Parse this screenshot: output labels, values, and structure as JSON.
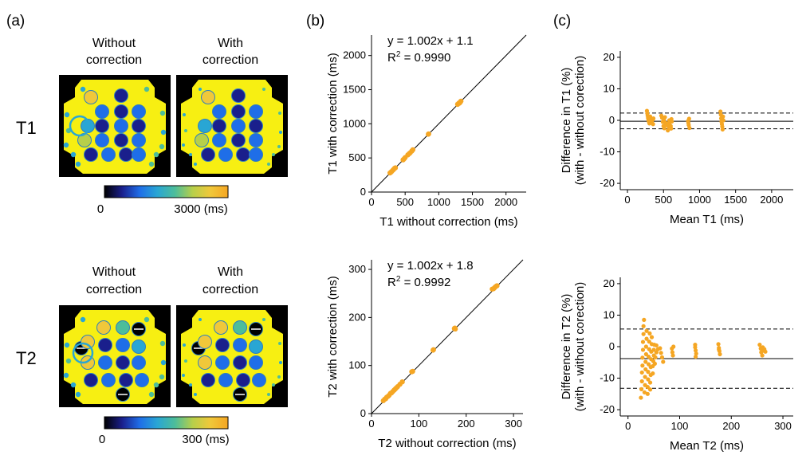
{
  "panel_labels": {
    "a": "(a)",
    "b": "(b)",
    "c": "(c)"
  },
  "panel_a": {
    "header_without": [
      "Without",
      "correction"
    ],
    "header_with": [
      "With",
      "correction"
    ],
    "row_labels": {
      "t1": "T1",
      "t2": "T2"
    },
    "colorbar_t1": {
      "min_label": "0",
      "max_label": "3000 (ms)"
    },
    "colorbar_t2": {
      "min_label": "0",
      "max_label": "300 (ms)"
    },
    "colormap": [
      "#000000",
      "#1a1f8c",
      "#1f6ee8",
      "#29a6d4",
      "#4dbd9a",
      "#b7cf4a",
      "#f0c83a",
      "#f5a623"
    ],
    "phantom_fill": "#f7ef12"
  },
  "chart_data": [
    {
      "id": "b_top",
      "type": "scatter",
      "xlabel": "T1 without correction (ms)",
      "ylabel": "T1 with correction (ms)",
      "xlim": [
        0,
        2300
      ],
      "ylim": [
        0,
        2300
      ],
      "xticks": [
        0,
        500,
        1000,
        1500,
        2000
      ],
      "yticks": [
        0,
        500,
        1000,
        1500,
        2000
      ],
      "tick_labels": [
        "0",
        "500",
        "1000",
        "1500",
        "2000"
      ],
      "equation": "y = 1.002x + 1.1",
      "r2_prefix": "R",
      "r2_value": " = 0.9990",
      "identity_line": true,
      "color": "#f5a623",
      "points": [
        [
          275,
          280
        ],
        [
          290,
          292
        ],
        [
          300,
          302
        ],
        [
          320,
          322
        ],
        [
          330,
          333
        ],
        [
          345,
          350
        ],
        [
          355,
          355
        ],
        [
          470,
          472
        ],
        [
          485,
          488
        ],
        [
          500,
          505
        ],
        [
          540,
          545
        ],
        [
          560,
          562
        ],
        [
          575,
          575
        ],
        [
          600,
          602
        ],
        [
          615,
          620
        ],
        [
          845,
          848
        ],
        [
          850,
          852
        ],
        [
          1280,
          1285
        ],
        [
          1295,
          1298
        ],
        [
          1305,
          1308
        ],
        [
          1310,
          1305
        ],
        [
          1320,
          1318
        ],
        [
          1330,
          1332
        ]
      ]
    },
    {
      "id": "b_bottom",
      "type": "scatter",
      "xlabel": "T2 without correction (ms)",
      "ylabel": "T2 with correction (ms)",
      "xlim": [
        0,
        320
      ],
      "ylim": [
        0,
        320
      ],
      "xticks": [
        0,
        100,
        200,
        300
      ],
      "yticks": [
        0,
        100,
        200,
        300
      ],
      "tick_labels": [
        "0",
        "100",
        "200",
        "300"
      ],
      "equation": "y = 1.002x + 1.8",
      "r2_prefix": "R",
      "r2_value": " = 0.9992",
      "identity_line": true,
      "color": "#f5a623",
      "points": [
        [
          25,
          27
        ],
        [
          28,
          30
        ],
        [
          30,
          31
        ],
        [
          32,
          34
        ],
        [
          35,
          36
        ],
        [
          37,
          38
        ],
        [
          40,
          42
        ],
        [
          42,
          43
        ],
        [
          45,
          46
        ],
        [
          48,
          49
        ],
        [
          50,
          51
        ],
        [
          52,
          53
        ],
        [
          55,
          56
        ],
        [
          60,
          61
        ],
        [
          65,
          66
        ],
        [
          85,
          87
        ],
        [
          87,
          88
        ],
        [
          130,
          132
        ],
        [
          131,
          133
        ],
        [
          175,
          177
        ],
        [
          176,
          178
        ],
        [
          177,
          176
        ],
        [
          255,
          259
        ],
        [
          258,
          260
        ],
        [
          260,
          262
        ],
        [
          262,
          264
        ],
        [
          265,
          266
        ]
      ]
    },
    {
      "id": "c_top",
      "type": "scatter",
      "xlabel": "Mean T1 (ms)",
      "ylabel_lines": [
        "Difference in T1 (%)",
        "(with - without corection)"
      ],
      "xlim": [
        -100,
        2300
      ],
      "ylim": [
        -22,
        22
      ],
      "xticks": [
        0,
        500,
        1000,
        1500,
        2000
      ],
      "yticks": [
        -20,
        -10,
        0,
        10,
        20
      ],
      "xtick_labels": [
        "0",
        "500",
        "1000",
        "1500",
        "2000"
      ],
      "ytick_labels": [
        "-20",
        "-10",
        "0",
        "10",
        "20"
      ],
      "mean_line": -0.3,
      "loa_upper": 2.3,
      "loa_lower": -2.7,
      "color": "#f5a623",
      "points": [
        [
          270,
          3.0
        ],
        [
          275,
          2.2
        ],
        [
          280,
          1.5
        ],
        [
          285,
          0.8
        ],
        [
          290,
          0.3
        ],
        [
          295,
          -0.2
        ],
        [
          300,
          -0.6
        ],
        [
          305,
          -1.0
        ],
        [
          310,
          0.5
        ],
        [
          315,
          1.2
        ],
        [
          320,
          -0.3
        ],
        [
          330,
          0.0
        ],
        [
          340,
          -0.8
        ],
        [
          350,
          0.2
        ],
        [
          355,
          -1.2
        ],
        [
          360,
          0.6
        ],
        [
          470,
          1.5
        ],
        [
          480,
          0.8
        ],
        [
          490,
          -0.5
        ],
        [
          500,
          -1.8
        ],
        [
          505,
          0.2
        ],
        [
          510,
          -2.5
        ],
        [
          520,
          1.0
        ],
        [
          530,
          -0.8
        ],
        [
          540,
          -1.5
        ],
        [
          560,
          -3.2
        ],
        [
          570,
          -2.0
        ],
        [
          575,
          -1.0
        ],
        [
          580,
          0.0
        ],
        [
          590,
          -0.6
        ],
        [
          600,
          -1.8
        ],
        [
          605,
          -2.6
        ],
        [
          610,
          0.4
        ],
        [
          615,
          -0.4
        ],
        [
          840,
          -0.2
        ],
        [
          845,
          -0.8
        ],
        [
          850,
          -1.5
        ],
        [
          855,
          0.5
        ],
        [
          860,
          -2.4
        ],
        [
          1290,
          2.8
        ],
        [
          1295,
          1.8
        ],
        [
          1300,
          0.6
        ],
        [
          1305,
          -0.4
        ],
        [
          1310,
          -1.2
        ],
        [
          1315,
          -2.0
        ],
        [
          1320,
          -2.9
        ],
        [
          1325,
          1.2
        ],
        [
          1330,
          0.0
        ]
      ]
    },
    {
      "id": "c_bottom",
      "type": "scatter",
      "xlabel": "Mean T2 (ms)",
      "ylabel_lines": [
        "Difference in T2 (%)",
        "(with - without corection)"
      ],
      "xlim": [
        -15,
        320
      ],
      "ylim": [
        -22,
        22
      ],
      "xticks": [
        0,
        100,
        200,
        300
      ],
      "yticks": [
        -20,
        -10,
        0,
        10,
        20
      ],
      "xtick_labels": [
        "0",
        "100",
        "200",
        "300"
      ],
      "ytick_labels": [
        "-20",
        "-10",
        "0",
        "10",
        "20"
      ],
      "mean_line": -3.8,
      "loa_upper": 5.6,
      "loa_lower": -13.2,
      "color": "#f5a623",
      "points": [
        [
          25,
          -16.2
        ],
        [
          26,
          -13.5
        ],
        [
          27,
          -11.0
        ],
        [
          27,
          -8.2
        ],
        [
          28,
          -6.0
        ],
        [
          28,
          -3.5
        ],
        [
          29,
          -1.0
        ],
        [
          29,
          1.5
        ],
        [
          30,
          4.0
        ],
        [
          30,
          6.5
        ],
        [
          31,
          8.5
        ],
        [
          32,
          -14.5
        ],
        [
          33,
          -12.2
        ],
        [
          33,
          -9.6
        ],
        [
          34,
          -7.2
        ],
        [
          34,
          -4.8
        ],
        [
          35,
          -2.4
        ],
        [
          35,
          0.0
        ],
        [
          36,
          2.5
        ],
        [
          36,
          5.0
        ],
        [
          38,
          -15.0
        ],
        [
          38,
          -12.8
        ],
        [
          39,
          -10.4
        ],
        [
          39,
          -8.0
        ],
        [
          40,
          -5.6
        ],
        [
          40,
          -3.2
        ],
        [
          41,
          -0.8
        ],
        [
          41,
          1.6
        ],
        [
          42,
          4.2
        ],
        [
          43,
          -13.6
        ],
        [
          43,
          -11.4
        ],
        [
          44,
          -9.0
        ],
        [
          44,
          -6.5
        ],
        [
          45,
          -4.0
        ],
        [
          45,
          -1.6
        ],
        [
          46,
          0.8
        ],
        [
          46,
          3.0
        ],
        [
          48,
          -8.5
        ],
        [
          48,
          -6.2
        ],
        [
          49,
          -4.6
        ],
        [
          50,
          -2.8
        ],
        [
          50,
          -1.0
        ],
        [
          51,
          0.6
        ],
        [
          52,
          -5.4
        ],
        [
          53,
          -3.4
        ],
        [
          55,
          -1.8
        ],
        [
          55,
          0.4
        ],
        [
          58,
          -0.8
        ],
        [
          62,
          -0.5
        ],
        [
          64,
          -2.0
        ],
        [
          66,
          -3.4
        ],
        [
          68,
          -4.8
        ],
        [
          85,
          -0.6
        ],
        [
          86,
          -1.8
        ],
        [
          87,
          -2.8
        ],
        [
          88,
          0.0
        ],
        [
          130,
          -0.2
        ],
        [
          131,
          -1.2
        ],
        [
          132,
          -2.2
        ],
        [
          131,
          -3.2
        ],
        [
          130,
          0.6
        ],
        [
          175,
          0.8
        ],
        [
          176,
          -0.4
        ],
        [
          177,
          -1.4
        ],
        [
          178,
          -2.4
        ],
        [
          176,
          -0.9
        ],
        [
          255,
          0.6
        ],
        [
          257,
          -0.6
        ],
        [
          258,
          -1.8
        ],
        [
          260,
          -2.8
        ],
        [
          261,
          -0.2
        ],
        [
          262,
          -1.2
        ],
        [
          264,
          -0.8
        ],
        [
          266,
          -1.6
        ]
      ]
    }
  ]
}
